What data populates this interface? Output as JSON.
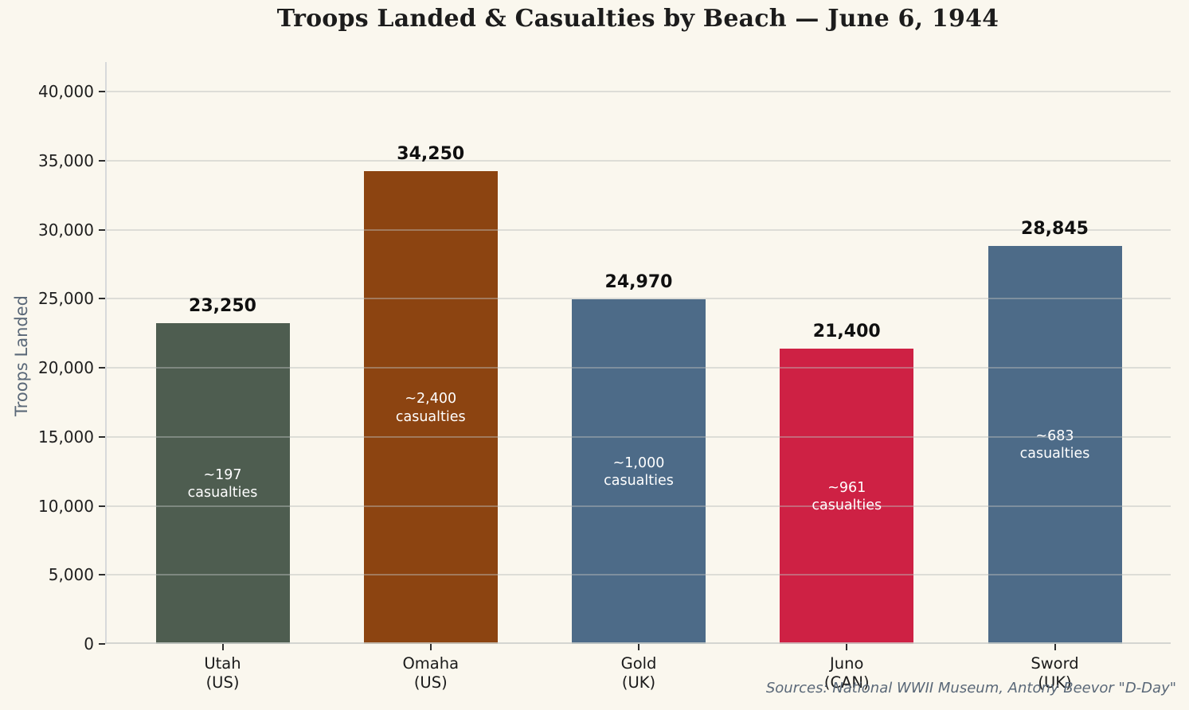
{
  "chart_data": {
    "type": "bar",
    "title": "Troops Landed & Casualties by Beach — June 6, 1944",
    "xlabel": "",
    "ylabel": "Troops Landed",
    "ylim": [
      0,
      42100
    ],
    "grid": true,
    "legend": "none",
    "background_color": "#FAF7EE",
    "yticks": [
      0,
      5000,
      10000,
      15000,
      20000,
      25000,
      30000,
      35000,
      40000
    ],
    "ytick_labels": [
      "0",
      "5,000",
      "10,000",
      "15,000",
      "20,000",
      "25,000",
      "30,000",
      "35,000",
      "40,000"
    ],
    "categories": [
      "Utah (US)",
      "Omaha (US)",
      "Gold (UK)",
      "Juno (CAN)",
      "Sword (UK)"
    ],
    "bars": [
      {
        "beach": "Utah",
        "country": "(US)",
        "troops_landed": 23250,
        "troops_label": "23,250",
        "casualties": 197,
        "casualty_label": "~197\ncasualties",
        "color": "#4E5D50"
      },
      {
        "beach": "Omaha",
        "country": "(US)",
        "troops_landed": 34250,
        "troops_label": "34,250",
        "casualties": 2400,
        "casualty_label": "~2,400\ncasualties",
        "color": "#8C4411"
      },
      {
        "beach": "Gold",
        "country": "(UK)",
        "troops_landed": 24970,
        "troops_label": "24,970",
        "casualties": 1000,
        "casualty_label": "~1,000\ncasualties",
        "color": "#4D6B88"
      },
      {
        "beach": "Juno",
        "country": "(CAN)",
        "troops_landed": 21400,
        "troops_label": "21,400",
        "casualties": 961,
        "casualty_label": "~961\ncasualties",
        "color": "#CE2144"
      },
      {
        "beach": "Sword",
        "country": "(UK)",
        "troops_landed": 28845,
        "troops_label": "28,845",
        "casualties": 683,
        "casualty_label": "~683\ncasualties",
        "color": "#4D6B88"
      }
    ],
    "source_note": "Sources: National WWII Museum, Antony Beevor \"D-Day\""
  }
}
